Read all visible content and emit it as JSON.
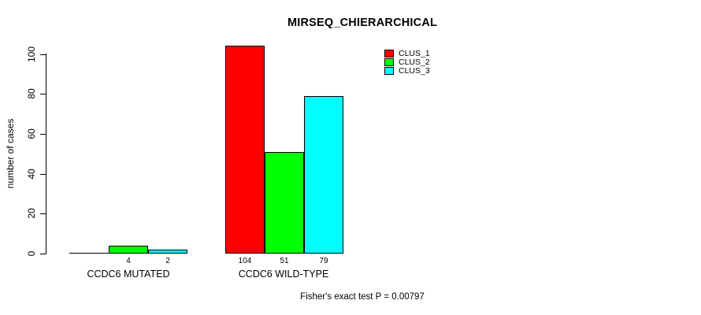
{
  "chart_data": {
    "type": "bar",
    "title": "MIRSEQ_CHIERARCHICAL",
    "xlabel": "",
    "ylabel": "number of cases",
    "categories": [
      "CCDC6 MUTATED",
      "CCDC6 WILD-TYPE"
    ],
    "series": [
      {
        "name": "CLUS_1",
        "color": "#FF0000",
        "values": [
          0,
          104
        ]
      },
      {
        "name": "CLUS_2",
        "color": "#00FF00",
        "values": [
          4,
          51
        ]
      },
      {
        "name": "CLUS_3",
        "color": "#00FFFF",
        "values": [
          2,
          79
        ]
      }
    ],
    "bar_value_labels": [
      [
        "",
        "4",
        "2"
      ],
      [
        "104",
        "51",
        "79"
      ]
    ],
    "yticks": [
      0,
      20,
      40,
      60,
      80,
      100
    ],
    "ylim": [
      0,
      100
    ],
    "grid": false,
    "bar_outline_color": "#000000",
    "legend_position": "top-right",
    "annotation": "Fisher's exact test P = 0.00797"
  }
}
